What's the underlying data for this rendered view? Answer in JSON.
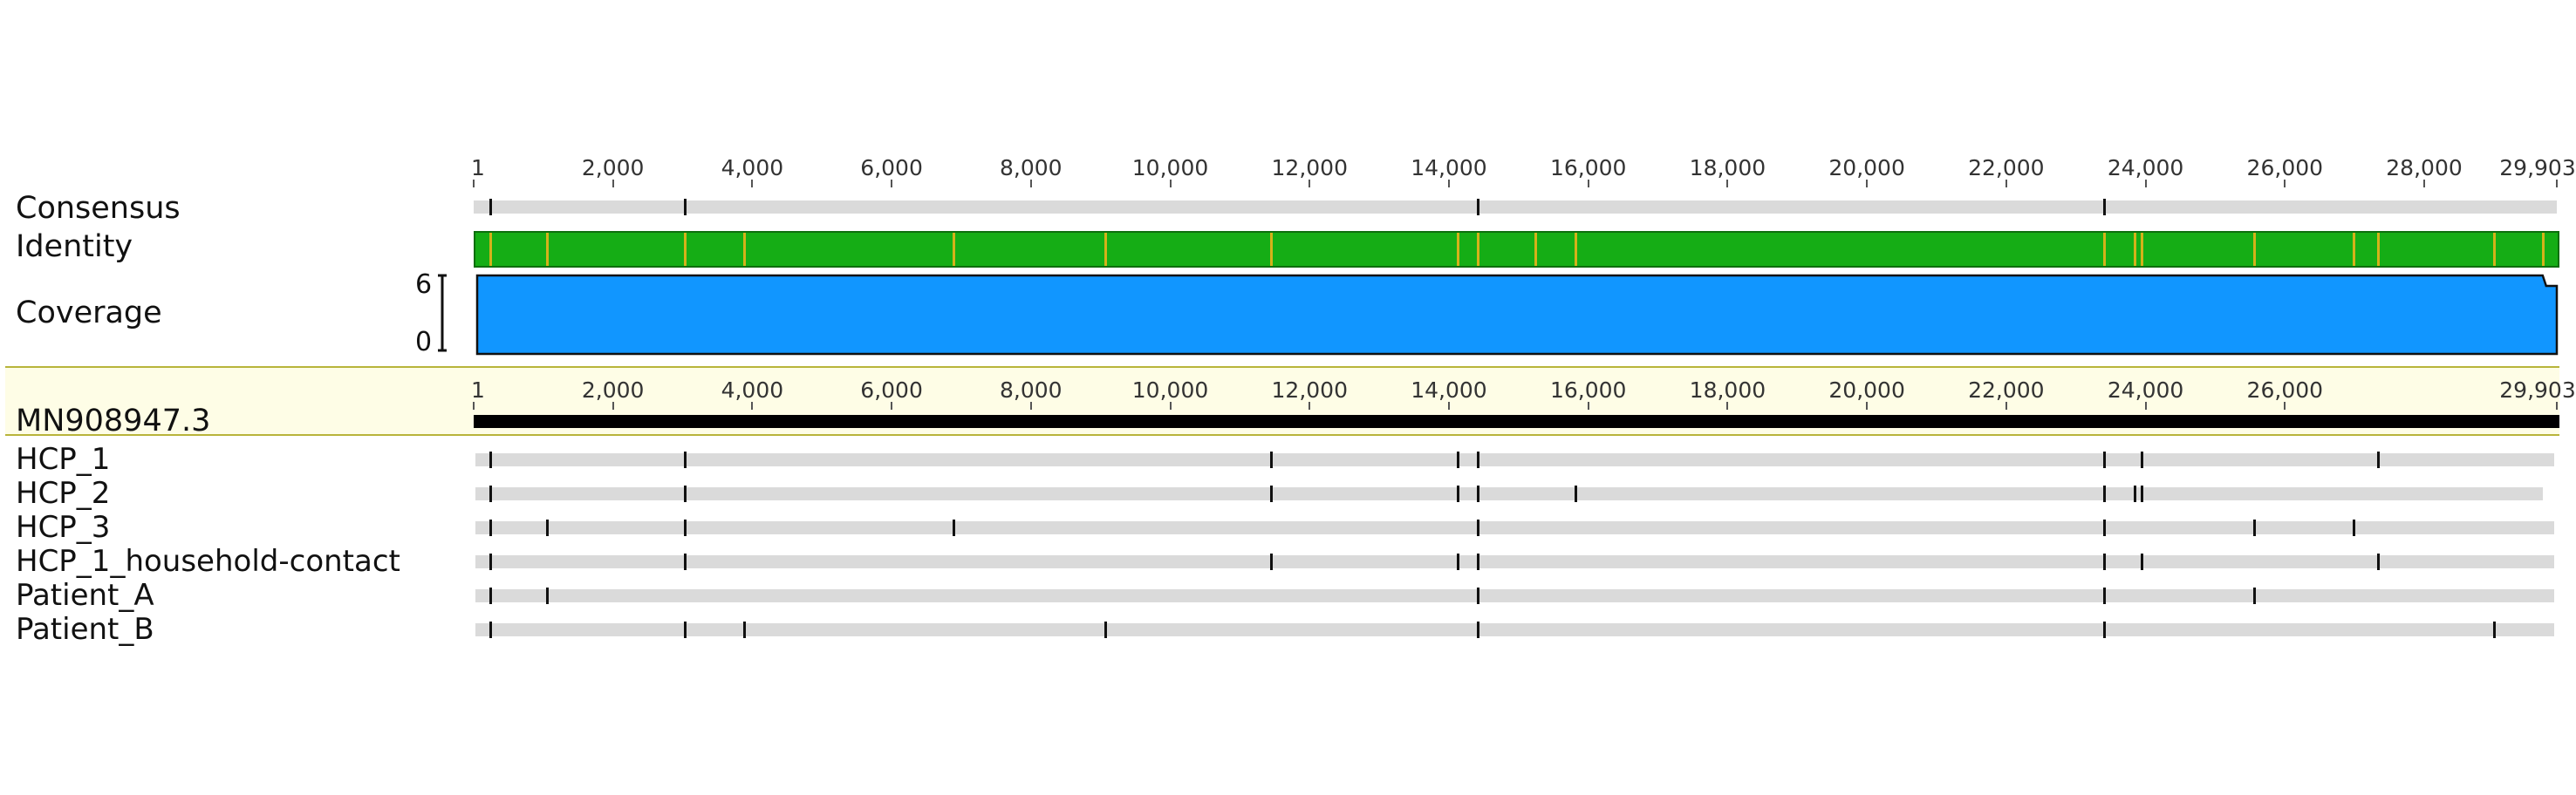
{
  "genome_length": 29903,
  "axis": {
    "top_ticks": [
      "1",
      "2,000",
      "4,000",
      "6,000",
      "8,000",
      "10,000",
      "12,000",
      "14,000",
      "16,000",
      "18,000",
      "20,000",
      "22,000",
      "24,000",
      "26,000",
      "28,000",
      "29,903"
    ],
    "top_values": [
      1,
      2000,
      4000,
      6000,
      8000,
      10000,
      12000,
      14000,
      16000,
      18000,
      20000,
      22000,
      24000,
      26000,
      28000,
      29903
    ],
    "ref_ticks": [
      "1",
      "2,000",
      "4,000",
      "6,000",
      "8,000",
      "10,000",
      "12,000",
      "14,000",
      "16,000",
      "18,000",
      "20,000",
      "22,000",
      "24,000",
      "26,000",
      "29,903"
    ],
    "ref_values": [
      1,
      2000,
      4000,
      6000,
      8000,
      10000,
      12000,
      14000,
      16000,
      18000,
      20000,
      22000,
      24000,
      26000,
      29903
    ]
  },
  "tracks": {
    "consensus_label": "Consensus",
    "identity_label": "Identity",
    "coverage_label": "Coverage",
    "coverage_max_label": "6",
    "coverage_min_label": "0",
    "reference_label": "MN908947.3"
  },
  "colors": {
    "identity": "#15ad15",
    "identity_mismatch": "#d4b21a",
    "coverage": "#1196ff",
    "reference_band": "#fefde6",
    "sequence_bar": "#dadada",
    "variant": "#111111"
  },
  "consensus_variants": [
    241,
    3037,
    14408,
    23403
  ],
  "identity_mismatches": [
    241,
    1059,
    3037,
    3880,
    6890,
    9070,
    11450,
    14120,
    14408,
    15240,
    15810,
    23403,
    23840,
    23940,
    25560,
    26990,
    27330,
    29000,
    29700
  ],
  "sequences": [
    {
      "label": "HCP_1",
      "start": 1,
      "end": 29870,
      "variants": [
        241,
        3037,
        11450,
        14120,
        14408,
        23403,
        23940,
        27330
      ]
    },
    {
      "label": "HCP_2",
      "start": 1,
      "end": 29700,
      "variants": [
        241,
        3037,
        11450,
        14120,
        14408,
        15810,
        23403,
        23840,
        23940
      ]
    },
    {
      "label": "HCP_3",
      "start": 1,
      "end": 29870,
      "variants": [
        241,
        1059,
        3037,
        6890,
        14408,
        23403,
        25560,
        26990
      ]
    },
    {
      "label": "HCP_1_household-contact",
      "start": 1,
      "end": 29870,
      "variants": [
        241,
        3037,
        11450,
        14120,
        14408,
        23403,
        23940,
        27330
      ]
    },
    {
      "label": "Patient_A",
      "start": 1,
      "end": 29870,
      "variants": [
        241,
        1059,
        14408,
        23403,
        25560
      ]
    },
    {
      "label": "Patient_B",
      "start": 1,
      "end": 29870,
      "variants": [
        241,
        3037,
        3880,
        9070,
        14408,
        23403,
        29000
      ]
    }
  ]
}
